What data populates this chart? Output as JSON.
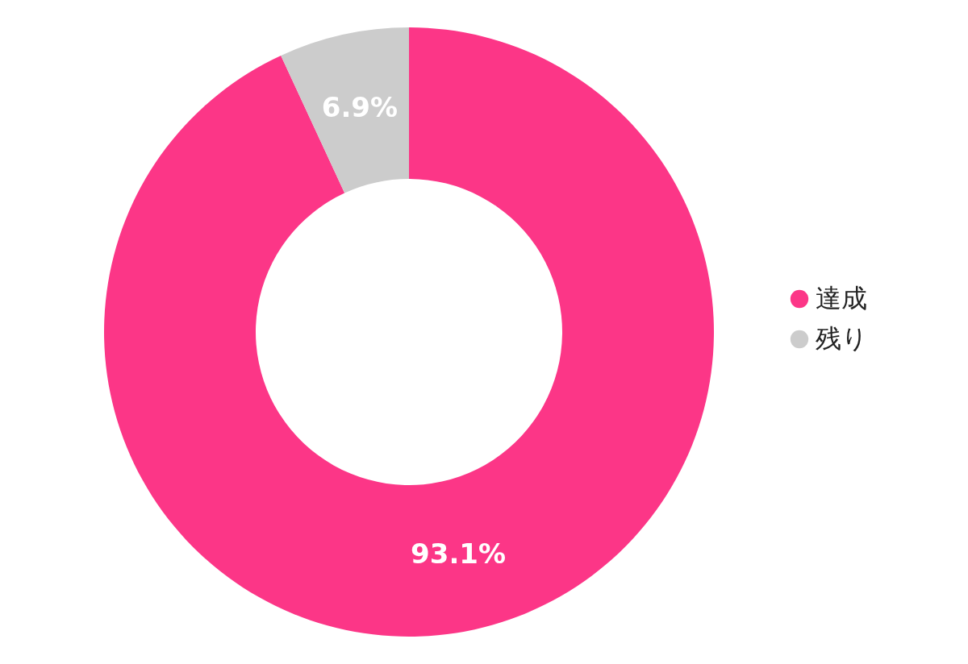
{
  "chart_data": {
    "type": "donut",
    "categories": [
      "達成",
      "残り"
    ],
    "values": [
      93.1,
      6.9
    ],
    "colors": [
      "#fc3687",
      "#cccccc"
    ],
    "value_labels": [
      "93.1%",
      "6.9%"
    ],
    "legend": "right"
  }
}
